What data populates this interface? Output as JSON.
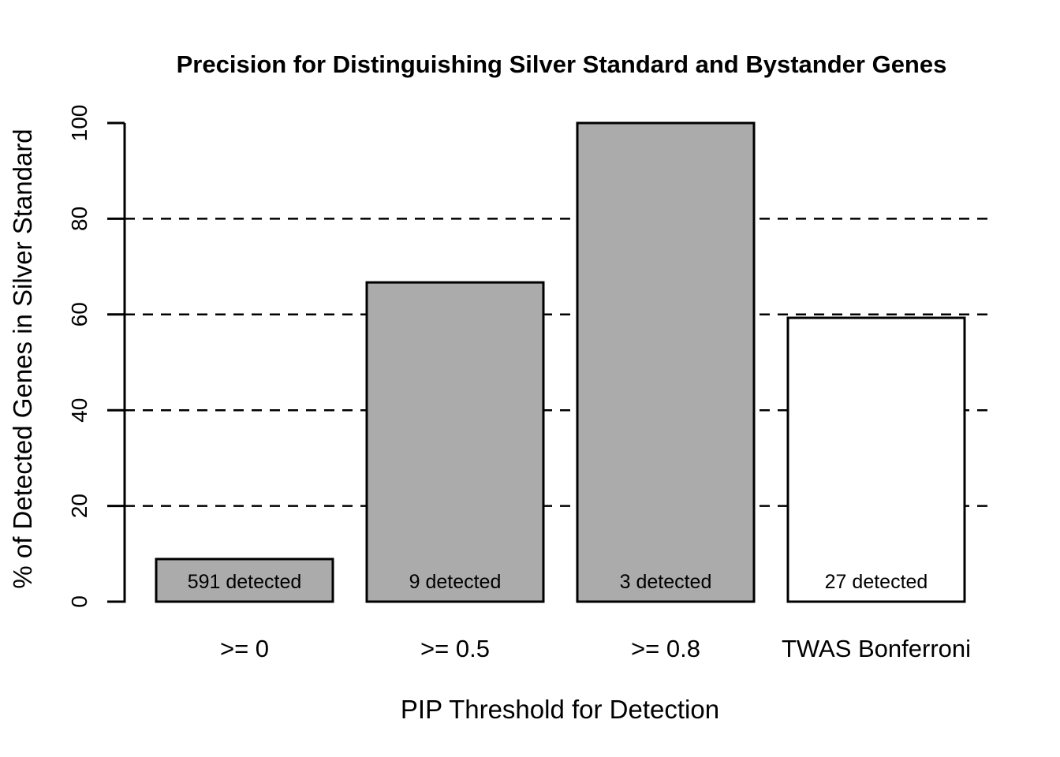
{
  "chart_data": {
    "type": "bar",
    "title": "Precision for Distinguishing Silver Standard and Bystander Genes",
    "xlabel": "PIP Threshold for Detection",
    "ylabel": "% of Detected Genes in Silver Standard",
    "categories": [
      ">= 0",
      ">= 0.5",
      ">= 0.8",
      "TWAS Bonferroni"
    ],
    "values": [
      8.9,
      66.7,
      100,
      59.3
    ],
    "bar_labels": [
      "591 detected",
      "9 detected",
      "3 detected",
      "27 detected"
    ],
    "bar_colors": [
      "#ababab",
      "#ababab",
      "#ababab",
      "#ffffff"
    ],
    "bar_border_color": "#000000",
    "yticks": [
      0,
      20,
      40,
      60,
      80,
      100
    ],
    "gridlines": [
      20,
      40,
      60,
      80
    ],
    "grid_style": "dashed",
    "ylim": [
      0,
      100
    ],
    "legend": "none",
    "background_color": "#ffffff"
  }
}
